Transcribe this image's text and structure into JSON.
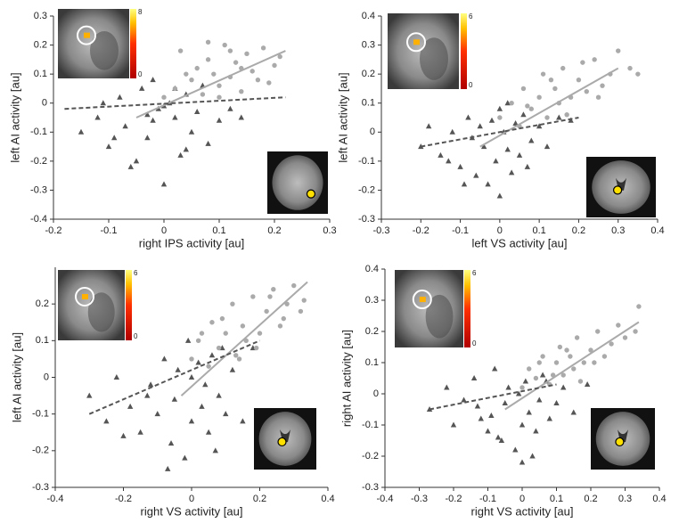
{
  "chart_data": [
    {
      "type": "scatter",
      "xlabel": "right IPS activity [au]",
      "ylabel": "left AI activity [au]",
      "xlim": [
        -0.2,
        0.3
      ],
      "xticks": [
        -0.2,
        -0.1,
        0,
        0.1,
        0.2,
        0.3
      ],
      "ylim": [
        -0.4,
        0.3
      ],
      "yticks": [
        -0.4,
        -0.3,
        -0.2,
        -0.1,
        0,
        0.1,
        0.2,
        0.3
      ],
      "colorbar": {
        "max": 8,
        "min": 0
      },
      "series": [
        {
          "color": "#555555",
          "marker": "triangle",
          "x": [
            -0.15,
            -0.12,
            -0.1,
            -0.08,
            -0.07,
            -0.05,
            -0.04,
            -0.03,
            -0.02,
            -0.01,
            0,
            0.01,
            0.02,
            0.03,
            0.04,
            0.05,
            0.06,
            0.08,
            0.1,
            0.12,
            -0.06,
            -0.02,
            0.02,
            0.0,
            -0.09,
            0.07,
            -0.03,
            0.04,
            -0.11,
            0.14
          ],
          "values": [
            -0.1,
            -0.05,
            -0.15,
            0.02,
            -0.08,
            -0.2,
            0.05,
            -0.12,
            0.08,
            -0.02,
            -0.28,
            0.0,
            -0.05,
            -0.18,
            0.03,
            -0.1,
            -0.03,
            -0.14,
            -0.06,
            -0.02,
            -0.22,
            -0.06,
            0.05,
            -0.01,
            -0.12,
            0.06,
            -0.04,
            -0.16,
            0.0,
            -0.05
          ]
        },
        {
          "color": "#aaaaaa",
          "marker": "circle",
          "x": [
            0.0,
            0.02,
            0.03,
            0.05,
            0.06,
            0.07,
            0.08,
            0.09,
            0.1,
            0.11,
            0.12,
            0.13,
            0.14,
            0.15,
            0.16,
            0.17,
            0.18,
            0.2,
            0.21,
            0.04,
            0.08,
            0.1,
            0.12,
            0.14,
            0.19
          ],
          "values": [
            0.02,
            0.05,
            0.18,
            0.08,
            0.12,
            0.03,
            0.15,
            0.1,
            0.06,
            0.2,
            0.09,
            0.14,
            0.04,
            0.17,
            0.11,
            0.08,
            0.19,
            0.13,
            0.16,
            0.1,
            0.21,
            0.02,
            0.18,
            0.12,
            0.07
          ]
        }
      ],
      "trend_lines": [
        {
          "color": "#aaaaaa",
          "dashed": false,
          "x": [
            -0.05,
            0.22
          ],
          "values": [
            -0.05,
            0.18
          ]
        },
        {
          "color": "#555555",
          "dashed": true,
          "x": [
            -0.18,
            0.22
          ],
          "values": [
            -0.02,
            0.02
          ]
        }
      ]
    },
    {
      "type": "scatter",
      "xlabel": "left VS activity [au]",
      "ylabel": "left AI activity [au]",
      "xlim": [
        -0.3,
        0.4
      ],
      "xticks": [
        -0.3,
        -0.2,
        -0.1,
        0,
        0.1,
        0.2,
        0.3,
        0.4
      ],
      "ylim": [
        -0.3,
        0.4
      ],
      "yticks": [
        -0.3,
        -0.2,
        -0.1,
        0,
        0.1,
        0.2,
        0.3,
        0.4
      ],
      "colorbar": {
        "max": 6,
        "min": 0
      },
      "series": [
        {
          "color": "#555555",
          "marker": "triangle",
          "x": [
            -0.2,
            -0.18,
            -0.15,
            -0.12,
            -0.1,
            -0.08,
            -0.06,
            -0.05,
            -0.04,
            -0.03,
            -0.02,
            -0.01,
            0,
            0.01,
            0.02,
            0.03,
            0.04,
            0.05,
            0.06,
            0.08,
            0.1,
            0.12,
            0.15,
            -0.07,
            0.0,
            -0.09,
            0.07,
            0.02,
            -0.13,
            0.18
          ],
          "values": [
            -0.05,
            0.02,
            -0.08,
            0.0,
            -0.12,
            0.05,
            -0.15,
            0.02,
            -0.05,
            -0.18,
            0.04,
            -0.1,
            -0.22,
            0.0,
            -0.06,
            -0.14,
            0.03,
            -0.08,
            0.06,
            -0.03,
            0.02,
            -0.05,
            0.05,
            -0.02,
            0.08,
            -0.18,
            -0.12,
            0.1,
            -0.1,
            0.04
          ]
        },
        {
          "color": "#aaaaaa",
          "marker": "circle",
          "x": [
            0.0,
            0.03,
            0.05,
            0.06,
            0.08,
            0.1,
            0.11,
            0.12,
            0.14,
            0.15,
            0.16,
            0.18,
            0.2,
            0.22,
            0.24,
            0.26,
            0.28,
            0.3,
            0.33,
            0.07,
            0.13,
            0.17,
            0.21,
            0.25,
            0.35
          ],
          "values": [
            0.05,
            0.1,
            0.02,
            0.15,
            0.08,
            0.12,
            0.2,
            0.05,
            0.15,
            0.1,
            0.22,
            0.12,
            0.18,
            0.14,
            0.25,
            0.16,
            0.2,
            0.28,
            0.22,
            0.09,
            0.18,
            0.06,
            0.24,
            0.12,
            0.2
          ]
        }
      ],
      "trend_lines": [
        {
          "color": "#aaaaaa",
          "dashed": false,
          "x": [
            -0.05,
            0.3
          ],
          "values": [
            -0.05,
            0.22
          ]
        },
        {
          "color": "#555555",
          "dashed": true,
          "x": [
            -0.2,
            0.2
          ],
          "values": [
            -0.05,
            0.05
          ]
        }
      ]
    },
    {
      "type": "scatter",
      "xlabel": "right VS activity [au]",
      "ylabel": "left AI activity [au]",
      "xlim": [
        -0.4,
        0.4
      ],
      "xticks": [
        -0.4,
        -0.2,
        0,
        0.2,
        0.4
      ],
      "ylim": [
        -0.3,
        0.3
      ],
      "yticks": [
        -0.3,
        -0.2,
        -0.1,
        0,
        0.1,
        0.2
      ],
      "colorbar": {
        "max": 6,
        "min": 0
      },
      "series": [
        {
          "color": "#555555",
          "marker": "triangle",
          "x": [
            -0.3,
            -0.25,
            -0.22,
            -0.18,
            -0.15,
            -0.12,
            -0.1,
            -0.08,
            -0.06,
            -0.05,
            -0.04,
            -0.02,
            0,
            0.02,
            0.03,
            0.05,
            0.06,
            0.08,
            0.1,
            0.12,
            0.15,
            0.18,
            -0.07,
            -0.01,
            0.04,
            -0.13,
            0.07,
            0.0,
            -0.2,
            0.09
          ],
          "values": [
            -0.05,
            -0.12,
            0.0,
            -0.08,
            -0.15,
            -0.02,
            -0.1,
            0.05,
            -0.18,
            -0.06,
            0.02,
            -0.22,
            -0.12,
            0.04,
            -0.08,
            -0.15,
            0.06,
            -0.05,
            -0.1,
            0.02,
            -0.12,
            0.08,
            -0.25,
            0.1,
            -0.02,
            -0.05,
            -0.2,
            0.0,
            -0.16,
            0.08
          ]
        },
        {
          "color": "#aaaaaa",
          "marker": "circle",
          "x": [
            0.0,
            0.02,
            0.05,
            0.06,
            0.08,
            0.1,
            0.12,
            0.13,
            0.15,
            0.16,
            0.18,
            0.2,
            0.22,
            0.24,
            0.26,
            0.28,
            0.3,
            0.32,
            0.03,
            0.09,
            0.14,
            0.19,
            0.23,
            0.27,
            0.33
          ],
          "values": [
            0.05,
            0.1,
            0.03,
            0.15,
            0.08,
            0.12,
            0.2,
            0.06,
            0.14,
            0.1,
            0.22,
            0.12,
            0.18,
            0.24,
            0.14,
            0.2,
            0.25,
            0.18,
            0.12,
            0.16,
            0.05,
            0.08,
            0.22,
            0.16,
            0.21
          ]
        }
      ],
      "trend_lines": [
        {
          "color": "#aaaaaa",
          "dashed": false,
          "x": [
            -0.03,
            0.34
          ],
          "values": [
            -0.05,
            0.26
          ]
        },
        {
          "color": "#555555",
          "dashed": true,
          "x": [
            -0.3,
            0.2
          ],
          "values": [
            -0.1,
            0.1
          ]
        }
      ]
    },
    {
      "type": "scatter",
      "xlabel": "right VS activity [au]",
      "ylabel": "right AI activity [au]",
      "xlim": [
        -0.4,
        0.4
      ],
      "xticks": [
        -0.4,
        -0.3,
        -0.2,
        -0.1,
        0,
        0.1,
        0.2,
        0.3,
        0.4
      ],
      "ylim": [
        -0.3,
        0.4
      ],
      "yticks": [
        -0.3,
        -0.2,
        -0.1,
        0,
        0.1,
        0.2,
        0.3,
        0.4
      ],
      "colorbar": {
        "max": 6,
        "min": 0
      },
      "series": [
        {
          "color": "#555555",
          "marker": "triangle",
          "x": [
            -0.27,
            -0.22,
            -0.2,
            -0.17,
            -0.14,
            -0.12,
            -0.1,
            -0.08,
            -0.06,
            -0.05,
            -0.04,
            -0.02,
            0,
            0.01,
            0.02,
            0.03,
            0.05,
            0.06,
            0.08,
            0.1,
            0.12,
            0.15,
            -0.07,
            -0.01,
            0.04,
            -0.13,
            0.07,
            0.0,
            -0.09,
            0.19
          ],
          "values": [
            -0.05,
            0.02,
            -0.1,
            -0.02,
            0.05,
            -0.08,
            -0.12,
            0.08,
            -0.15,
            -0.03,
            0.02,
            -0.18,
            -0.1,
            0.04,
            -0.06,
            -0.2,
            -0.02,
            0.06,
            -0.08,
            -0.03,
            0.02,
            -0.06,
            -0.14,
            0.0,
            -0.12,
            -0.04,
            0.04,
            -0.22,
            -0.07,
            0.03
          ]
        },
        {
          "color": "#aaaaaa",
          "marker": "circle",
          "x": [
            0.0,
            0.02,
            0.04,
            0.06,
            0.08,
            0.1,
            0.11,
            0.12,
            0.14,
            0.15,
            0.16,
            0.18,
            0.2,
            0.22,
            0.24,
            0.26,
            0.28,
            0.3,
            0.33,
            0.05,
            0.09,
            0.13,
            0.17,
            0.21,
            0.34
          ],
          "values": [
            0.02,
            0.08,
            0.05,
            0.12,
            0.03,
            0.1,
            0.15,
            0.06,
            0.12,
            0.08,
            0.18,
            0.1,
            0.14,
            0.2,
            0.12,
            0.16,
            0.22,
            0.18,
            0.2,
            0.1,
            0.06,
            0.14,
            0.04,
            0.1,
            0.28
          ]
        }
      ],
      "trend_lines": [
        {
          "color": "#aaaaaa",
          "dashed": false,
          "x": [
            -0.05,
            0.34
          ],
          "values": [
            -0.05,
            0.23
          ]
        },
        {
          "color": "#555555",
          "dashed": true,
          "x": [
            -0.27,
            0.1
          ],
          "values": [
            -0.05,
            0.03
          ]
        }
      ]
    }
  ]
}
